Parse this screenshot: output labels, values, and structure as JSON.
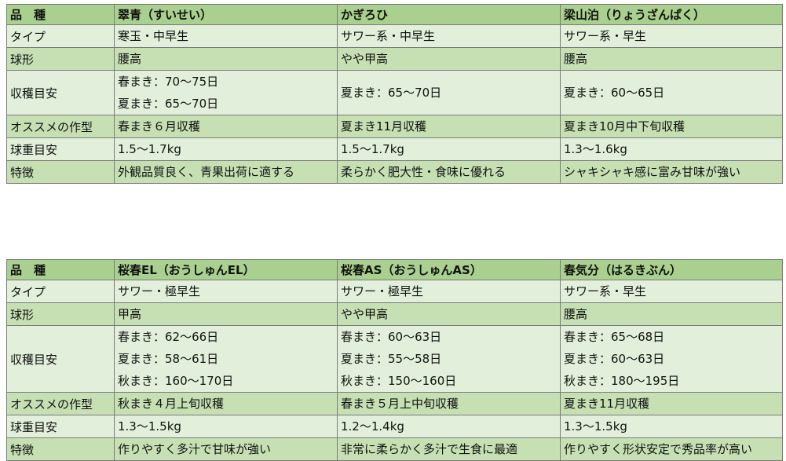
{
  "colors": {
    "header": "#a9d08e",
    "row_light": "#e2efda",
    "row_dark": "#c6e0b4"
  },
  "tables": [
    {
      "header": [
        "品　種",
        "翠青（すいせい）",
        "かぎろひ",
        "梁山泊（りょうざんぱく）"
      ],
      "rows": [
        {
          "label": "タイプ",
          "cells": [
            [
              "寒玉・中早生"
            ],
            [
              "サワー系・中早生"
            ],
            [
              "サワー系・早生"
            ]
          ]
        },
        {
          "label": "球形",
          "cells": [
            [
              "腰高"
            ],
            [
              "やや甲高"
            ],
            [
              "腰高"
            ]
          ]
        },
        {
          "label": "収穫目安",
          "cells": [
            [
              "春まき：70～75日",
              "夏まき：65～70日"
            ],
            [
              "夏まき：65～70日"
            ],
            [
              "夏まき：60～65日"
            ]
          ]
        },
        {
          "label": "オススメの作型",
          "cells": [
            [
              "春まき６月収穫"
            ],
            [
              "夏まき11月収穫"
            ],
            [
              "夏まき10月中下旬収穫"
            ]
          ]
        },
        {
          "label": "球重目安",
          "cells": [
            [
              "1.5～1.7kg"
            ],
            [
              "1.5～1.7kg"
            ],
            [
              "1.3～1.6kg"
            ]
          ]
        },
        {
          "label": "特徴",
          "cells": [
            [
              "外観品質良く、青果出荷に適する"
            ],
            [
              "柔らかく肥大性・食味に優れる"
            ],
            [
              "シャキシャキ感に富み甘味が強い"
            ]
          ]
        }
      ]
    },
    {
      "header": [
        "品　種",
        "桜春EL（おうしゅんEL）",
        "桜春AS（おうしゅんAS）",
        "春気分（はるきぶん）"
      ],
      "rows": [
        {
          "label": "タイプ",
          "cells": [
            [
              "サワー・極早生"
            ],
            [
              "サワー・極早生"
            ],
            [
              "サワー系・早生"
            ]
          ]
        },
        {
          "label": "球形",
          "cells": [
            [
              "甲高"
            ],
            [
              "やや甲高"
            ],
            [
              "腰高"
            ]
          ]
        },
        {
          "label": "収穫目安",
          "cells": [
            [
              "春まき：62～66日",
              "夏まき：58～61日",
              "秋まき：160～170日"
            ],
            [
              "春まき：60～63日",
              "夏まき：55～58日",
              "秋まき：150～160日"
            ],
            [
              "春まき：65～68日",
              "夏まき：60～63日",
              "秋まき：180～195日"
            ]
          ]
        },
        {
          "label": "オススメの作型",
          "cells": [
            [
              "秋まき４月上旬収穫"
            ],
            [
              "春まき５月上中旬収穫"
            ],
            [
              "夏まき11月収穫"
            ]
          ]
        },
        {
          "label": "球重目安",
          "cells": [
            [
              "1.3～1.5kg"
            ],
            [
              "1.2～1.4kg"
            ],
            [
              "1.3～1.5kg"
            ]
          ]
        },
        {
          "label": "特徴",
          "cells": [
            [
              "作りやすく多汁で甘味が強い"
            ],
            [
              "非常に柔らかく多汁で生食に最適"
            ],
            [
              "作りやすく形状安定で秀品率が高い"
            ]
          ]
        }
      ]
    }
  ]
}
